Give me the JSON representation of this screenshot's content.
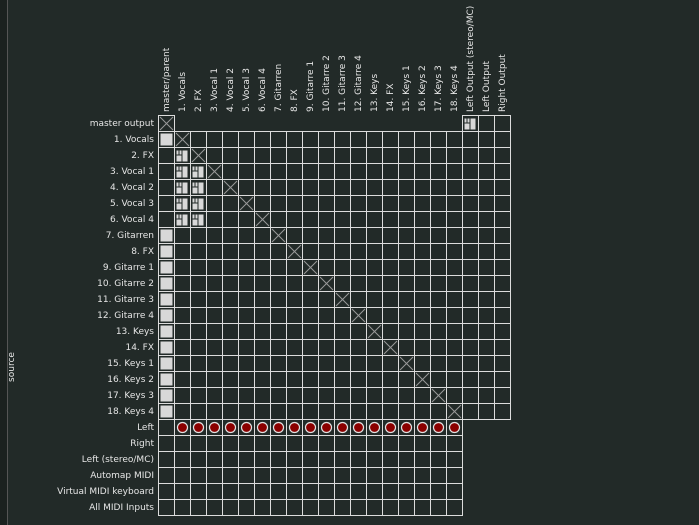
{
  "source_label": "source",
  "destinations": [
    "master/parent",
    "1. Vocals",
    "2. FX",
    "3. Vocal 1",
    "4. Vocal 2",
    "5. Vocal 3",
    "6. Vocal 4",
    "7. Gitarren",
    "8. FX",
    "9. Gitarre 1",
    "10. Gitarre 2",
    "11. Gitarre 3",
    "12. Gitarre 4",
    "13. Keys",
    "14. FX",
    "15. Keys 1",
    "16. Keys 2",
    "17. Keys 3",
    "18. Keys 4",
    "Left Output (stereo/MC)",
    "Left Output",
    "Right Output"
  ],
  "sources": [
    "master output",
    "1. Vocals",
    "2. FX",
    "3. Vocal 1",
    "4. Vocal 2",
    "5. Vocal 3",
    "6. Vocal 4",
    "7. Gitarren",
    "8. FX",
    "9. Gitarre 1",
    "10. Gitarre 2",
    "11. Gitarre 3",
    "12. Gitarre 4",
    "13. Keys",
    "14. FX",
    "15. Keys 1",
    "16. Keys 2",
    "17. Keys 3",
    "18. Keys 4",
    "Left",
    "Right",
    "Left (stereo/MC)",
    "Automap MIDI",
    "Virtual MIDI keyboard",
    "All MIDI Inputs"
  ],
  "colors": {
    "background": "#222a28",
    "grid": "#dcdcdc",
    "connection": "#d8d8d8",
    "midi_dot": "#8b0000",
    "self_cross": "#9a9a9a"
  },
  "parent_connections": [
    0,
    1,
    7,
    8,
    9,
    10,
    11,
    12,
    13,
    14,
    15,
    16,
    17,
    18
  ],
  "master_output_connection": "Left Output (stereo/MC)",
  "vocal_group_sends": [
    2,
    3,
    4,
    5,
    6
  ],
  "midi_connections": {
    "source": "Left",
    "destination_start": 1,
    "destination_end": 18
  }
}
